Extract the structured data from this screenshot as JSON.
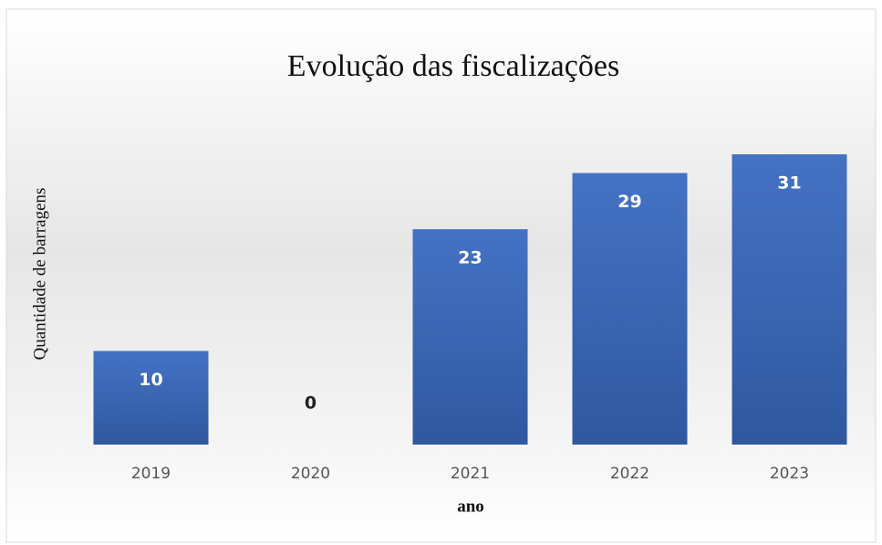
{
  "chart_data": {
    "type": "bar",
    "title": "Evolução das fiscalizações",
    "y_label": "Quantidade de barragens",
    "x_label": "ano",
    "categories": [
      "2019",
      "2020",
      "2021",
      "2022",
      "2023"
    ],
    "values": [
      10,
      0,
      23,
      29,
      31
    ],
    "color": "#4472c4",
    "ylim": [
      0,
      35
    ]
  }
}
